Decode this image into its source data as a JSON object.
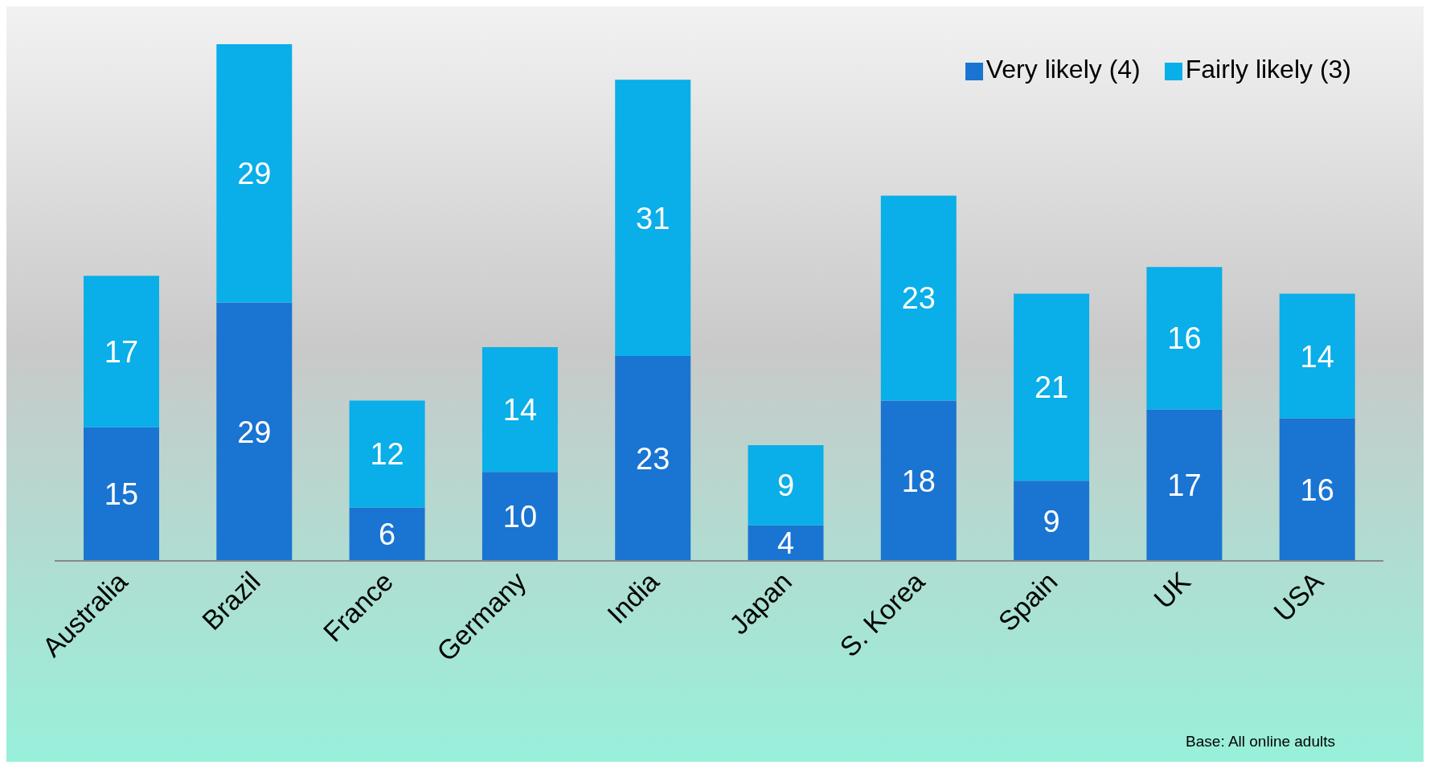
{
  "chart_data": {
    "type": "bar",
    "stacked": true,
    "categories": [
      "Australia",
      "Brazil",
      "France",
      "Germany",
      "India",
      "Japan",
      "S. Korea",
      "Spain",
      "UK",
      "USA"
    ],
    "series": [
      {
        "name": "Very likely (4)",
        "color": "#1a74d2",
        "values": [
          15,
          29,
          6,
          10,
          23,
          4,
          18,
          9,
          17,
          16
        ]
      },
      {
        "name": "Fairly likely (3)",
        "color": "#0aaee8",
        "values": [
          17,
          29,
          12,
          14,
          31,
          9,
          23,
          21,
          16,
          14
        ]
      }
    ],
    "data_labels": true,
    "legend": "top right",
    "grid": false,
    "annotations": [
      "Base: All online adults"
    ]
  }
}
